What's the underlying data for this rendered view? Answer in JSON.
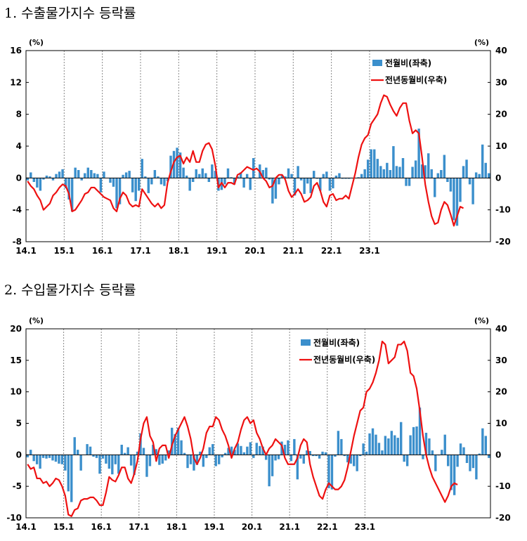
{
  "titles": {
    "chart1": "1. 수출물가지수 등락률",
    "chart2": "2. 수입물가지수 등락률"
  },
  "colors": {
    "bar": "#3b8fcc",
    "line": "#ee1111"
  },
  "chart_data": [
    {
      "type": "bar+line",
      "title": "1. 수출물가지수 등락률",
      "left_unit": "(%)",
      "right_unit": "(%)",
      "left_ylim": [
        -8,
        16
      ],
      "left_ticks": [
        "16",
        "12",
        "8",
        "4",
        "0",
        "-4",
        "-8"
      ],
      "right_ylim": [
        -20,
        40
      ],
      "right_ticks": [
        "40",
        "30",
        "20",
        "10",
        "0",
        "-10",
        "-20"
      ],
      "x_labels": [
        "14.1",
        "15.1",
        "16.1",
        "17.1",
        "18.1",
        "19.1",
        "20.1",
        "21.1",
        "22.1",
        "23.1"
      ],
      "months_per_label": 12,
      "legend": {
        "bar": "전월비(좌축)",
        "line": "전년동월비(우축)"
      },
      "bars": [
        -0.3,
        0.7,
        -0.5,
        -1.2,
        -1.6,
        -0.2,
        0.3,
        0.2,
        -0.3,
        0.5,
        0.8,
        1.1,
        -1.3,
        -2.7,
        -4.2,
        1.3,
        1.0,
        -0.3,
        0.6,
        1.3,
        1.0,
        0.6,
        0.5,
        -1.8,
        0.8,
        0.0,
        -0.6,
        -1.1,
        -3.8,
        -3.3,
        0.4,
        0.7,
        0.9,
        -1.8,
        -2.9,
        -1.6,
        2.4,
        0.2,
        -1.9,
        -0.8,
        1.0,
        0.2,
        -0.8,
        -1.0,
        -0.4,
        2.8,
        3.4,
        3.8,
        3.2,
        1.3,
        0.3,
        -1.6,
        -0.5,
        1.1,
        0.5,
        1.2,
        0.6,
        -0.5,
        1.7,
        0.9,
        -1.6,
        -1.5,
        -0.8,
        1.2,
        0.1,
        -0.8,
        0.2,
        0.7,
        -1.2,
        0.5,
        -1.5,
        2.5,
        0.0,
        1.7,
        1.0,
        1.3,
        -0.2,
        -3.2,
        -2.6,
        -0.8,
        0.4,
        0.2,
        1.2,
        0.5,
        -2.2,
        1.5,
        -0.3,
        -2.0,
        -0.7,
        -1.9,
        0.9,
        -0.1,
        -1.6,
        0.5,
        0.8,
        -1.6,
        -1.3,
        0.3,
        0.6,
        -0.1,
        -0.1,
        -0.1,
        0.0,
        0.0,
        0.1,
        0.5,
        1.1,
        2.3,
        3.6,
        3.6,
        2.4,
        1.5,
        1.1,
        1.9,
        1.0,
        4.0,
        1.5,
        1.4,
        2.5,
        -1.0,
        -1.0,
        1.4,
        2.2,
        6.2,
        1.7,
        1.6,
        3.1,
        1.1,
        -2.4,
        0.6,
        1.0,
        2.9,
        -0.5,
        -1.7,
        -5.3,
        -6.0,
        -3.0,
        1.5,
        2.3,
        -0.8,
        -3.3,
        0.7,
        0.5,
        4.2,
        1.9,
        0.6
      ],
      "line": [
        -1,
        -2.5,
        -3.5,
        -5.5,
        -7,
        -10,
        -9,
        -8,
        -5.5,
        -4.5,
        -3,
        -2,
        -2.5,
        -5,
        -10.5,
        -10,
        -8.5,
        -7,
        -5,
        -4.5,
        -3,
        -3,
        -4,
        -5,
        -6,
        -6.5,
        -7,
        -9.5,
        -10.5,
        -6.5,
        -4.5,
        -5.5,
        -8,
        -9,
        -8.5,
        -9,
        -3.5,
        -5,
        -6.5,
        -8,
        -9,
        -8,
        -9.5,
        -8.5,
        -1.5,
        2,
        5,
        6.5,
        7,
        4.5,
        6.5,
        5,
        8.5,
        5,
        5,
        8.5,
        10.5,
        11,
        9,
        4,
        -3,
        -1.5,
        -3,
        -1.5,
        -1.5,
        -2,
        1,
        1.5,
        2.5,
        3.5,
        3,
        2.5,
        3,
        2,
        0,
        -1,
        -3,
        -2.5,
        0,
        1,
        1,
        -0.5,
        -4,
        -6,
        -5,
        -3.5,
        -5,
        -7.5,
        -7,
        -6,
        -2.5,
        -1.5,
        -4,
        -7.5,
        -9,
        -5.5,
        -5,
        -7,
        -6.5,
        -6.5,
        -5.5,
        -6.5,
        -2.5,
        1.5,
        6.5,
        10.5,
        12.5,
        13.5,
        17,
        18.5,
        20,
        23.5,
        26,
        25.5,
        23,
        21,
        19.5,
        22,
        23.5,
        23.5,
        18,
        14,
        15,
        14,
        6.5,
        -2,
        -7.5,
        -12,
        -14.5,
        -14,
        -10,
        -7.5,
        -8.5,
        -11.5,
        -15,
        -12,
        -9,
        -9.5
      ]
    },
    {
      "type": "bar+line",
      "title": "2. 수입물가지수 등락률",
      "left_unit": "(%)",
      "right_unit": "(%)",
      "left_ylim": [
        -10,
        20
      ],
      "left_ticks": [
        "20",
        "15",
        "10",
        "5",
        "0",
        "-5",
        "-10"
      ],
      "right_ylim": [
        -20,
        40
      ],
      "right_ticks": [
        "40",
        "30",
        "20",
        "10",
        "0",
        "-10",
        "-20"
      ],
      "x_labels": [
        "14.1",
        "15.1",
        "16.1",
        "17.1",
        "18.1",
        "19.1",
        "20.1",
        "21.1",
        "22.1",
        "23.1"
      ],
      "months_per_label": 12,
      "legend": {
        "bar": "전월비(좌축)",
        "line": "전년동월비(우축)"
      },
      "bars": [
        -0.4,
        0.8,
        -1.0,
        -1.5,
        -2.2,
        -0.5,
        -0.6,
        -0.5,
        -0.9,
        -1.1,
        -1.4,
        -1.5,
        -2.5,
        -5.8,
        -7.5,
        2.8,
        0.8,
        -2.5,
        0.0,
        1.7,
        1.3,
        -0.3,
        -0.5,
        -3.0,
        -0.6,
        -1.4,
        -2.2,
        -3.1,
        -1.5,
        -3.0,
        1.6,
        0.3,
        1.2,
        -1.7,
        -3.2,
        0.5,
        3.4,
        1.1,
        -3.5,
        -1.8,
        1.6,
        0.9,
        -1.6,
        -1.4,
        -0.9,
        0.7,
        4.3,
        3.3,
        4.3,
        2.3,
        0.3,
        -2.1,
        -1.5,
        -2.5,
        -1.6,
        0.5,
        -1.9,
        -0.5,
        1.2,
        1.7,
        -1.8,
        -1.5,
        -0.4,
        0.3,
        1.1,
        1.3,
        0.8,
        1.8,
        1.4,
        0.4,
        1.3,
        2.0,
        -0.5,
        1.9,
        1.4,
        1.3,
        -0.8,
        -5.0,
        -3.4,
        -0.9,
        -0.7,
        2.1,
        1.6,
        2.3,
        -1.0,
        2.5,
        -3.9,
        -0.6,
        -1.4,
        0.7,
        0.6,
        -0.2,
        -0.2,
        -0.6,
        0.5,
        0.4,
        -5.3,
        -5.5,
        -0.3,
        3.8,
        2.5,
        -0.2,
        -1.2,
        -1.4,
        -1.8,
        -2.6,
        -0.2,
        1.8,
        0.5,
        3.4,
        4.2,
        3.2,
        1.9,
        0.7,
        3.0,
        2.6,
        3.8,
        3.1,
        2.7,
        5.2,
        -1.1,
        -1.8,
        3.1,
        4.4,
        4.5,
        7.5,
        -0.7,
        3.5,
        2.6,
        0.7,
        -2.6,
        -0.1,
        0.8,
        3.2,
        -1.8,
        -5.6,
        -6.4,
        -1.9,
        1.8,
        1.2,
        -1.3,
        -2.6,
        -2.1,
        -3.9,
        0.2,
        4.2,
        3.0,
        -0.5
      ],
      "line": [
        -3,
        -4.5,
        -4,
        -7.5,
        -7.5,
        -9,
        -8.5,
        -10,
        -9,
        -7.5,
        -8,
        -10,
        -13,
        -19,
        -19.5,
        -17.5,
        -17,
        -14.5,
        -14,
        -14,
        -13.5,
        -13.5,
        -14.5,
        -16,
        -16,
        -12,
        -7,
        -8,
        -8.5,
        -6.5,
        -4,
        -4,
        -7.5,
        -9,
        -6,
        -2,
        5,
        10,
        12,
        6,
        4,
        -2,
        2,
        3,
        3,
        -1,
        3,
        6,
        8,
        10,
        12,
        9,
        5,
        -1,
        -3,
        -1,
        2,
        7,
        9,
        9,
        12,
        11,
        8,
        6,
        3,
        -1,
        2,
        4,
        8,
        11,
        12,
        10,
        11,
        7,
        5,
        2,
        0,
        2,
        3,
        5,
        4,
        3,
        -1,
        -3,
        -3,
        -3,
        -1,
        3,
        5,
        4,
        -3,
        -7,
        -10,
        -13,
        -14,
        -11,
        -9,
        -10,
        -11,
        -11,
        -10,
        -8,
        -4,
        1,
        6,
        10,
        14,
        15,
        20,
        21,
        23,
        26,
        30,
        36,
        35,
        29,
        30,
        31,
        35,
        35,
        36,
        33,
        26,
        25,
        21,
        14,
        6,
        0,
        -4,
        -7,
        -9,
        -11,
        -13,
        -15,
        -13,
        -10,
        -9,
        -9.5
      ]
    }
  ]
}
